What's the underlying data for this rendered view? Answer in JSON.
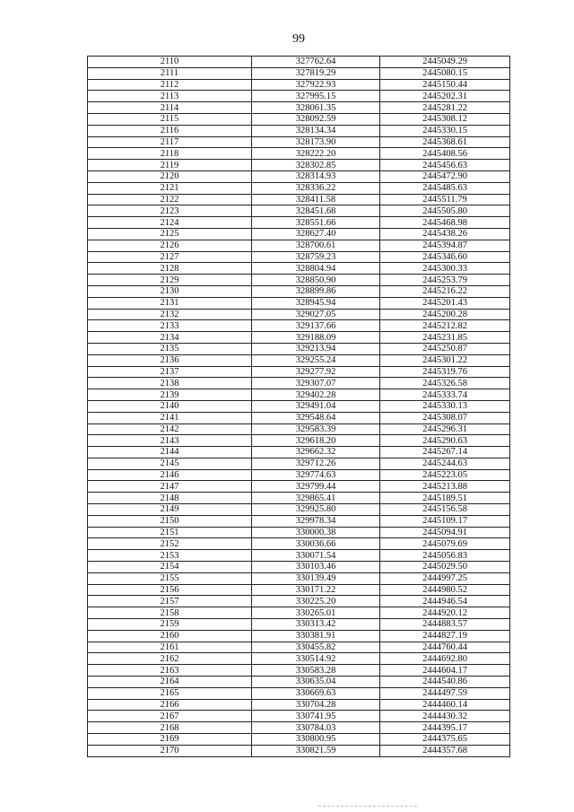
{
  "page_number": "99",
  "table": {
    "rows": [
      [
        "2110",
        "327762.64",
        "2445049.29"
      ],
      [
        "2111",
        "327819.29",
        "2445080.15"
      ],
      [
        "2112",
        "327922.93",
        "2445150.44"
      ],
      [
        "2113",
        "327995.15",
        "2445202.31"
      ],
      [
        "2114",
        "328061.35",
        "2445281.22"
      ],
      [
        "2115",
        "328092.59",
        "2445308.12"
      ],
      [
        "2116",
        "328134.34",
        "2445330.15"
      ],
      [
        "2117",
        "328173.90",
        "2445368.61"
      ],
      [
        "2118",
        "328222.20",
        "2445408.56"
      ],
      [
        "2119",
        "328302.85",
        "2445456.63"
      ],
      [
        "2120",
        "328314.93",
        "2445472.90"
      ],
      [
        "2121",
        "328336.22",
        "2445485.63"
      ],
      [
        "2122",
        "328411.58",
        "2445511.79"
      ],
      [
        "2123",
        "328451.68",
        "2445505.80"
      ],
      [
        "2124",
        "328551.66",
        "2445468.98"
      ],
      [
        "2125",
        "328627.40",
        "2445438.26"
      ],
      [
        "2126",
        "328700.61",
        "2445394.87"
      ],
      [
        "2127",
        "328759.23",
        "2445346.60"
      ],
      [
        "2128",
        "328804.94",
        "2445300.33"
      ],
      [
        "2129",
        "328850.90",
        "2445253.79"
      ],
      [
        "2130",
        "328899.86",
        "2445216.22"
      ],
      [
        "2131",
        "328945.94",
        "2445201.43"
      ],
      [
        "2132",
        "329027.05",
        "2445200.28"
      ],
      [
        "2133",
        "329137.66",
        "2445212.82"
      ],
      [
        "2134",
        "329188.09",
        "2445231.85"
      ],
      [
        "2135",
        "329213.94",
        "2445250.87"
      ],
      [
        "2136",
        "329255.24",
        "2445301.22"
      ],
      [
        "2137",
        "329277.92",
        "2445319.76"
      ],
      [
        "2138",
        "329307.07",
        "2445326.58"
      ],
      [
        "2139",
        "329402.28",
        "2445333.74"
      ],
      [
        "2140",
        "329491.04",
        "2445330.13"
      ],
      [
        "2141",
        "329548.64",
        "2445308.07"
      ],
      [
        "2142",
        "329583.39",
        "2445296.31"
      ],
      [
        "2143",
        "329618.20",
        "2445290.63"
      ],
      [
        "2144",
        "329662.32",
        "2445267.14"
      ],
      [
        "2145",
        "329712.26",
        "2445244.63"
      ],
      [
        "2146",
        "329774.63",
        "2445223.05"
      ],
      [
        "2147",
        "329799.44",
        "2445213.88"
      ],
      [
        "2148",
        "329865.41",
        "2445189.51"
      ],
      [
        "2149",
        "329925.80",
        "2445156.58"
      ],
      [
        "2150",
        "329978.34",
        "2445109.17"
      ],
      [
        "2151",
        "330000.38",
        "2445094.91"
      ],
      [
        "2152",
        "330036.66",
        "2445079.69"
      ],
      [
        "2153",
        "330071.54",
        "2445056.83"
      ],
      [
        "2154",
        "330103.46",
        "2445029.50"
      ],
      [
        "2155",
        "330139.49",
        "2444997.25"
      ],
      [
        "2156",
        "330171.22",
        "2444980.52"
      ],
      [
        "2157",
        "330225.20",
        "2444946.54"
      ],
      [
        "2158",
        "330265.01",
        "2444920.12"
      ],
      [
        "2159",
        "330313.42",
        "2444883.57"
      ],
      [
        "2160",
        "330381.91",
        "2444827.19"
      ],
      [
        "2161",
        "330455.82",
        "2444760.44"
      ],
      [
        "2162",
        "330514.92",
        "2444692.80"
      ],
      [
        "2163",
        "330583.28",
        "2444604.17"
      ],
      [
        "2164",
        "330635.04",
        "2444540.86"
      ],
      [
        "2165",
        "330669.63",
        "2444497.59"
      ],
      [
        "2166",
        "330704.28",
        "2444460.14"
      ],
      [
        "2167",
        "330741.95",
        "2444430.32"
      ],
      [
        "2168",
        "330784.03",
        "2444395.17"
      ],
      [
        "2169",
        "330800.95",
        "2444375.65"
      ],
      [
        "2170",
        "330821.59",
        "2444357.68"
      ]
    ]
  }
}
